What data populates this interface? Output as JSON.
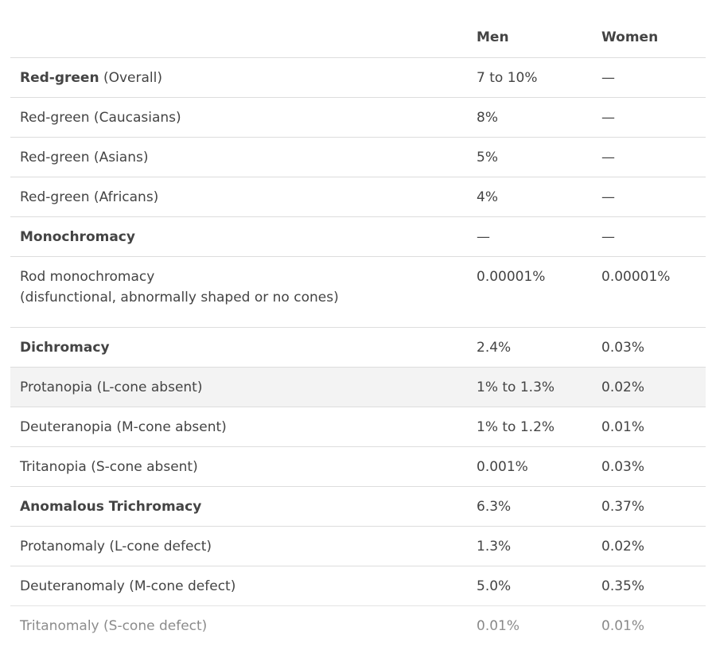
{
  "headers": {
    "condition": "",
    "men": "Men",
    "women": "Women"
  },
  "rows": [
    {
      "bold": "Red-green",
      "rest": " (Overall)",
      "men": "7 to 10%",
      "women": "—"
    },
    {
      "bold": "",
      "rest": "Red-green (Caucasians)",
      "men": "8%",
      "women": "—"
    },
    {
      "bold": "",
      "rest": "Red-green (Asians)",
      "men": "5%",
      "women": "—"
    },
    {
      "bold": "",
      "rest": "Red-green (Africans)",
      "men": "4%",
      "women": "—"
    },
    {
      "bold": "Monochromacy",
      "rest": "",
      "men": "—",
      "women": "—"
    },
    {
      "bold": "",
      "rest": "Rod monochromacy",
      "rest2": "(disfunctional, abnormally shaped or no cones)",
      "men": "0.00001%",
      "women": "0.00001%"
    },
    {
      "bold": "Dichromacy",
      "rest": "",
      "men": "2.4%",
      "women": "0.03%"
    },
    {
      "bold": "",
      "rest": "Protanopia (L-cone absent)",
      "men": "1% to 1.3%",
      "women": "0.02%"
    },
    {
      "bold": "",
      "rest": "Deuteranopia (M-cone absent)",
      "men": "1% to 1.2%",
      "women": "0.01%"
    },
    {
      "bold": "",
      "rest": "Tritanopia (S-cone absent)",
      "men": "0.001%",
      "women": "0.03%"
    },
    {
      "bold": "Anomalous Trichromacy",
      "rest": "",
      "men": "6.3%",
      "women": "0.37%"
    },
    {
      "bold": "",
      "rest": "Protanomaly (L-cone defect)",
      "men": "1.3%",
      "women": "0.02%"
    },
    {
      "bold": "",
      "rest": "Deuteranomaly (M-cone defect)",
      "men": "5.0%",
      "women": "0.35%"
    },
    {
      "bold": "",
      "rest": "Tritanomaly (S-cone defect)",
      "men": "0.01%",
      "women": "0.01%"
    }
  ]
}
